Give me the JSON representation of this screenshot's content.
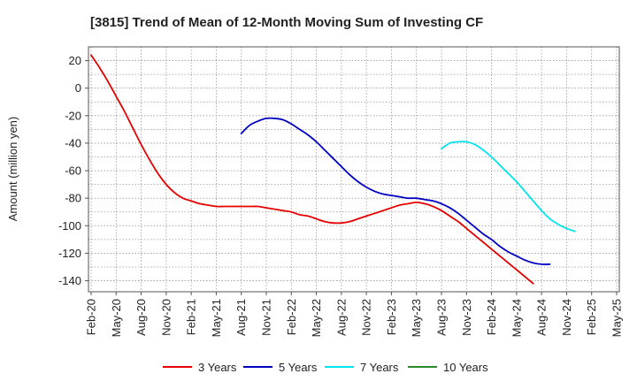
{
  "chart_data": {
    "type": "line",
    "title": "[3815]  Trend of Mean of 12-Month Moving Sum of Investing CF",
    "xlabel": "",
    "ylabel": "Amount (million yen)",
    "ylim": [
      -148,
      30
    ],
    "yticks": [
      20,
      0,
      -20,
      -40,
      -60,
      -80,
      -100,
      -120,
      -140
    ],
    "grid": true,
    "legend_position": "bottom",
    "x_tick_labels": [
      "Feb-20",
      "May-20",
      "Aug-20",
      "Nov-20",
      "Feb-21",
      "May-21",
      "Aug-21",
      "Nov-21",
      "Feb-22",
      "May-22",
      "Aug-22",
      "Nov-22",
      "Feb-23",
      "May-23",
      "Aug-23",
      "Nov-23",
      "Feb-24",
      "May-24",
      "Aug-24",
      "Nov-24",
      "Feb-25",
      "May-25"
    ],
    "series": [
      {
        "name": "3 Years",
        "color": "#e60000",
        "start_index": 0,
        "values": [
          24,
          15,
          5,
          -6,
          -17,
          -29,
          -41,
          -52,
          -62,
          -70,
          -76,
          -80,
          -82,
          -84,
          -85,
          -86,
          -86,
          -86,
          -86,
          -86,
          -86,
          -87,
          -88,
          -89,
          -90,
          -92,
          -93,
          -95,
          -97,
          -98,
          -98,
          -97,
          -95,
          -93,
          -91,
          -89,
          -87,
          -85,
          -84,
          -83,
          -84,
          -86,
          -89,
          -93,
          -97,
          -102,
          -107,
          -112,
          -117,
          -122,
          -127,
          -132,
          -137,
          -142
        ]
      },
      {
        "name": "5 Years",
        "color": "#0000c0",
        "start_index": 18,
        "values": [
          -33,
          -27,
          -24,
          -22,
          -22,
          -23,
          -26,
          -30,
          -34,
          -39,
          -45,
          -51,
          -57,
          -63,
          -68,
          -72,
          -75,
          -77,
          -78,
          -79,
          -80,
          -80,
          -81,
          -82,
          -84,
          -87,
          -91,
          -96,
          -101,
          -106,
          -110,
          -115,
          -119,
          -122,
          -125,
          -127,
          -128,
          -128
        ]
      },
      {
        "name": "7 Years",
        "color": "#00e5ee",
        "start_index": 42,
        "values": [
          -44,
          -40,
          -39,
          -39,
          -41,
          -45,
          -50,
          -56,
          -62,
          -68,
          -75,
          -82,
          -89,
          -95,
          -99,
          -102,
          -104
        ]
      },
      {
        "name": "10 Years",
        "color": "#2a8a2a",
        "start_index": 0,
        "values": []
      }
    ]
  }
}
